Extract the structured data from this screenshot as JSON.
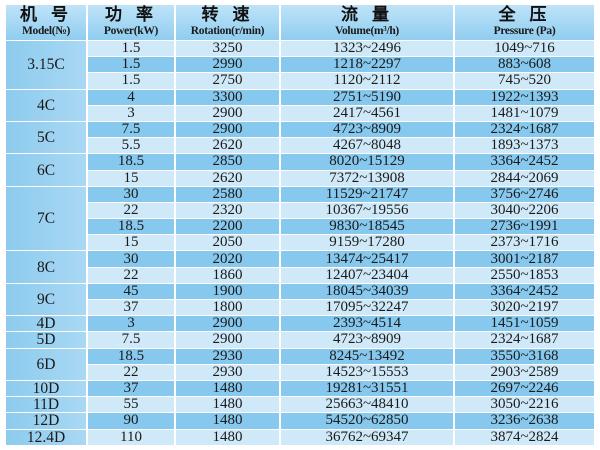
{
  "headers": [
    {
      "zh": "机 号",
      "en": "Model(№)"
    },
    {
      "zh": "功 率",
      "en": "Power(kW)"
    },
    {
      "zh": "转 速",
      "en": "Rotation(r/min)"
    },
    {
      "zh": "流 量",
      "en": "Volume(m³/h)"
    },
    {
      "zh": "全 压",
      "en": "Pressure (Pa)"
    }
  ],
  "colors": {
    "header": "#a8d8f4",
    "row_light": "#cfe9f9",
    "row_dark": "#86c8ee",
    "model_cell": "#8dcbee"
  },
  "groups": [
    {
      "model": "3.15C",
      "rows": [
        [
          "1.5",
          "3250",
          "1323~2496",
          "1049~716"
        ],
        [
          "1.5",
          "2990",
          "1218~2297",
          "883~608"
        ],
        [
          "1.5",
          "2750",
          "1120~2112",
          "745~520"
        ]
      ]
    },
    {
      "model": "4C",
      "rows": [
        [
          "4",
          "3300",
          "2751~5190",
          "1922~1393"
        ],
        [
          "3",
          "2900",
          "2417~4561",
          "1481~1079"
        ]
      ]
    },
    {
      "model": "5C",
      "rows": [
        [
          "7.5",
          "2900",
          "4723~8909",
          "2324~1687"
        ],
        [
          "5.5",
          "2620",
          "4267~8048",
          "1893~1373"
        ]
      ]
    },
    {
      "model": "6C",
      "rows": [
        [
          "18.5",
          "2850",
          "8020~15129",
          "3364~2452"
        ],
        [
          "15",
          "2620",
          "7372~13908",
          "2844~2069"
        ]
      ]
    },
    {
      "model": "7C",
      "rows": [
        [
          "30",
          "2580",
          "11529~21747",
          "3756~2746"
        ],
        [
          "22",
          "2320",
          "10367~19556",
          "3040~2206"
        ],
        [
          "18.5",
          "2200",
          "9830~18545",
          "2736~1991"
        ],
        [
          "15",
          "2050",
          "9159~17280",
          "2373~1716"
        ]
      ]
    },
    {
      "model": "8C",
      "rows": [
        [
          "30",
          "2020",
          "13474~25417",
          "3001~2187"
        ],
        [
          "22",
          "1860",
          "12407~23404",
          "2550~1853"
        ]
      ]
    },
    {
      "model": "9C",
      "rows": [
        [
          "45",
          "1900",
          "18045~34039",
          "3364~2452"
        ],
        [
          "37",
          "1800",
          "17095~32247",
          "3020~2197"
        ]
      ]
    },
    {
      "model": "4D",
      "rows": [
        [
          "3",
          "2900",
          "2393~4514",
          "1451~1059"
        ]
      ]
    },
    {
      "model": "5D",
      "rows": [
        [
          "7.5",
          "2900",
          "4723~8909",
          "2324~1687"
        ]
      ]
    },
    {
      "model": "6D",
      "rows": [
        [
          "18.5",
          "2930",
          "8245~13492",
          "3550~3168"
        ],
        [
          "22",
          "2930",
          "14523~15553",
          "2903~2589"
        ]
      ]
    },
    {
      "model": "10D",
      "rows": [
        [
          "37",
          "1480",
          "19281~31551",
          "2697~2246"
        ]
      ]
    },
    {
      "model": "11D",
      "rows": [
        [
          "55",
          "1480",
          "25663~48410",
          "3050~2216"
        ]
      ]
    },
    {
      "model": "12D",
      "rows": [
        [
          "90",
          "1480",
          "54520~62850",
          "3236~2638"
        ]
      ]
    },
    {
      "model": "12.4D",
      "rows": [
        [
          "110",
          "1480",
          "36762~69347",
          "3874~2824"
        ]
      ]
    }
  ]
}
